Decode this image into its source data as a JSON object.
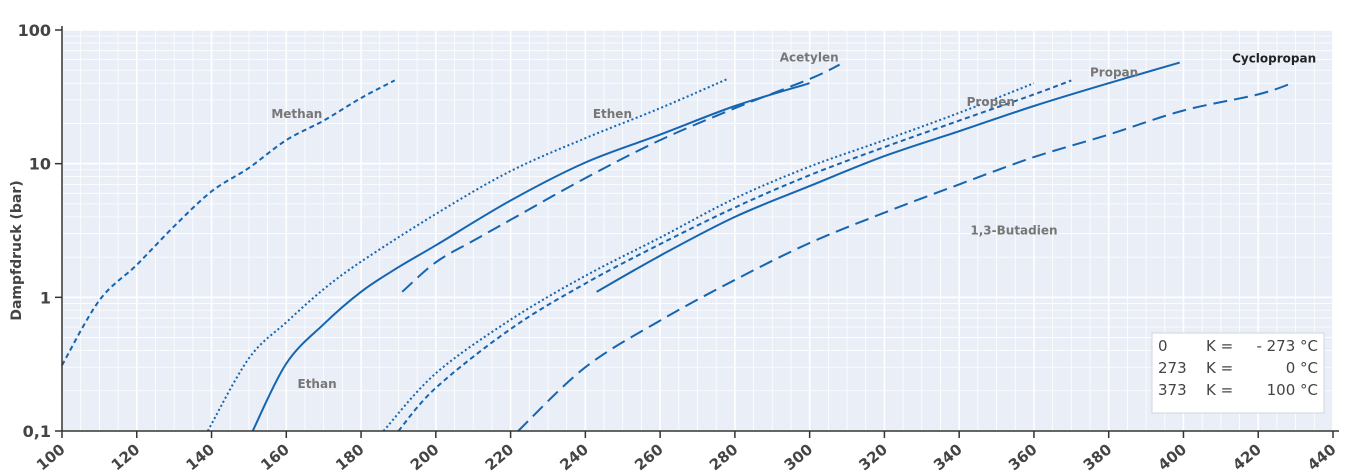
{
  "chart_data": {
    "type": "line",
    "ylabel": "Dampfdruck (bar)",
    "xlabel": "",
    "xlim": [
      100,
      440
    ],
    "ylim": [
      0.1,
      100
    ],
    "yscale": "log",
    "grid": true,
    "x_ticks": [
      "100",
      "120",
      "140",
      "160",
      "180",
      "200",
      "220",
      "240",
      "260",
      "280",
      "300",
      "320",
      "340",
      "360",
      "380",
      "400",
      "420",
      "440"
    ],
    "y_ticks": [
      {
        "value": 0.1,
        "label": "0,1"
      },
      {
        "value": 1,
        "label": "1"
      },
      {
        "value": 10,
        "label": "10"
      },
      {
        "value": 100,
        "label": "100"
      }
    ],
    "series": [
      {
        "name": "Methan",
        "style": "dashed-short",
        "points": [
          [
            100,
            0.31
          ],
          [
            110,
            0.95
          ],
          [
            120,
            1.75
          ],
          [
            130,
            3.4
          ],
          [
            140,
            6.2
          ],
          [
            150,
            9.3
          ],
          [
            160,
            15
          ],
          [
            170,
            21
          ],
          [
            180,
            31
          ],
          [
            189,
            42
          ]
        ]
      },
      {
        "name": "Ethen",
        "style": "dotted",
        "points": [
          [
            139,
            0.1
          ],
          [
            150,
            0.35
          ],
          [
            160,
            0.65
          ],
          [
            170,
            1.15
          ],
          [
            180,
            1.85
          ],
          [
            200,
            4.2
          ],
          [
            220,
            8.8
          ],
          [
            240,
            15.5
          ],
          [
            260,
            26
          ],
          [
            278,
            43
          ]
        ]
      },
      {
        "name": "Ethan",
        "style": "solid",
        "points": [
          [
            151,
            0.1
          ],
          [
            160,
            0.32
          ],
          [
            170,
            0.63
          ],
          [
            180,
            1.1
          ],
          [
            190,
            1.68
          ],
          [
            200,
            2.45
          ],
          [
            220,
            5.3
          ],
          [
            240,
            10.2
          ],
          [
            260,
            16.5
          ],
          [
            280,
            27
          ],
          [
            300,
            40
          ]
        ]
      },
      {
        "name": "Acetylen",
        "style": "dashed-long",
        "points": [
          [
            191,
            1.1
          ],
          [
            200,
            1.83
          ],
          [
            210,
            2.65
          ],
          [
            220,
            3.8
          ],
          [
            240,
            7.8
          ],
          [
            260,
            15
          ],
          [
            280,
            26
          ],
          [
            300,
            43
          ],
          [
            308,
            55
          ]
        ]
      },
      {
        "name": "Propen",
        "style": "dotted",
        "points": [
          [
            186,
            0.1
          ],
          [
            200,
            0.27
          ],
          [
            220,
            0.68
          ],
          [
            240,
            1.45
          ],
          [
            260,
            2.8
          ],
          [
            280,
            5.5
          ],
          [
            300,
            9.5
          ],
          [
            320,
            15
          ],
          [
            340,
            24
          ],
          [
            360,
            40
          ]
        ]
      },
      {
        "name": "Propan",
        "style": "dashed-short",
        "points": [
          [
            190,
            0.1
          ],
          [
            200,
            0.21
          ],
          [
            220,
            0.58
          ],
          [
            240,
            1.27
          ],
          [
            260,
            2.5
          ],
          [
            280,
            4.7
          ],
          [
            300,
            8.2
          ],
          [
            320,
            13.3
          ],
          [
            340,
            21
          ],
          [
            360,
            33
          ],
          [
            370,
            42
          ]
        ]
      },
      {
        "name": "Cyclopropan",
        "style": "solid",
        "points": [
          [
            243,
            1.1
          ],
          [
            260,
            2.05
          ],
          [
            280,
            4.0
          ],
          [
            300,
            6.8
          ],
          [
            320,
            11.4
          ],
          [
            340,
            17.5
          ],
          [
            360,
            27
          ],
          [
            380,
            40
          ],
          [
            399,
            57
          ]
        ]
      },
      {
        "name": "1,3-Butadien",
        "style": "dashed-long",
        "points": [
          [
            222,
            0.1
          ],
          [
            240,
            0.3
          ],
          [
            260,
            0.67
          ],
          [
            280,
            1.35
          ],
          [
            300,
            2.55
          ],
          [
            320,
            4.3
          ],
          [
            340,
            7.0
          ],
          [
            360,
            11.2
          ],
          [
            380,
            16.5
          ],
          [
            400,
            25
          ],
          [
            420,
            33
          ],
          [
            429,
            40
          ]
        ]
      }
    ],
    "curve_labels": [
      {
        "text": "Methan",
        "x": 156,
        "y": 22,
        "dark": false
      },
      {
        "text": "Ethen",
        "x": 242,
        "y": 22,
        "dark": false
      },
      {
        "text": "Acetylen",
        "x": 292,
        "y": 58,
        "dark": false
      },
      {
        "text": "Ethan",
        "x": 163,
        "y": 0.21,
        "dark": false
      },
      {
        "text": "Propen",
        "x": 342,
        "y": 27,
        "dark": false
      },
      {
        "text": "Propan",
        "x": 375,
        "y": 45,
        "dark": false
      },
      {
        "text": "Cyclopropan",
        "x": 413,
        "y": 57,
        "dark": true
      },
      {
        "text": "1,3-Butadien",
        "x": 343,
        "y": 2.95,
        "dark": false
      }
    ],
    "conversion_note": [
      [
        "0",
        "K =",
        "- 273 °C"
      ],
      [
        "273",
        "K =",
        "0 °C"
      ],
      [
        "373",
        "K =",
        "100 °C"
      ]
    ],
    "colors": {
      "plot_background": "#e9eef7",
      "grid": "#ffffff",
      "line": "#1565b0",
      "axis": "#333333"
    }
  }
}
